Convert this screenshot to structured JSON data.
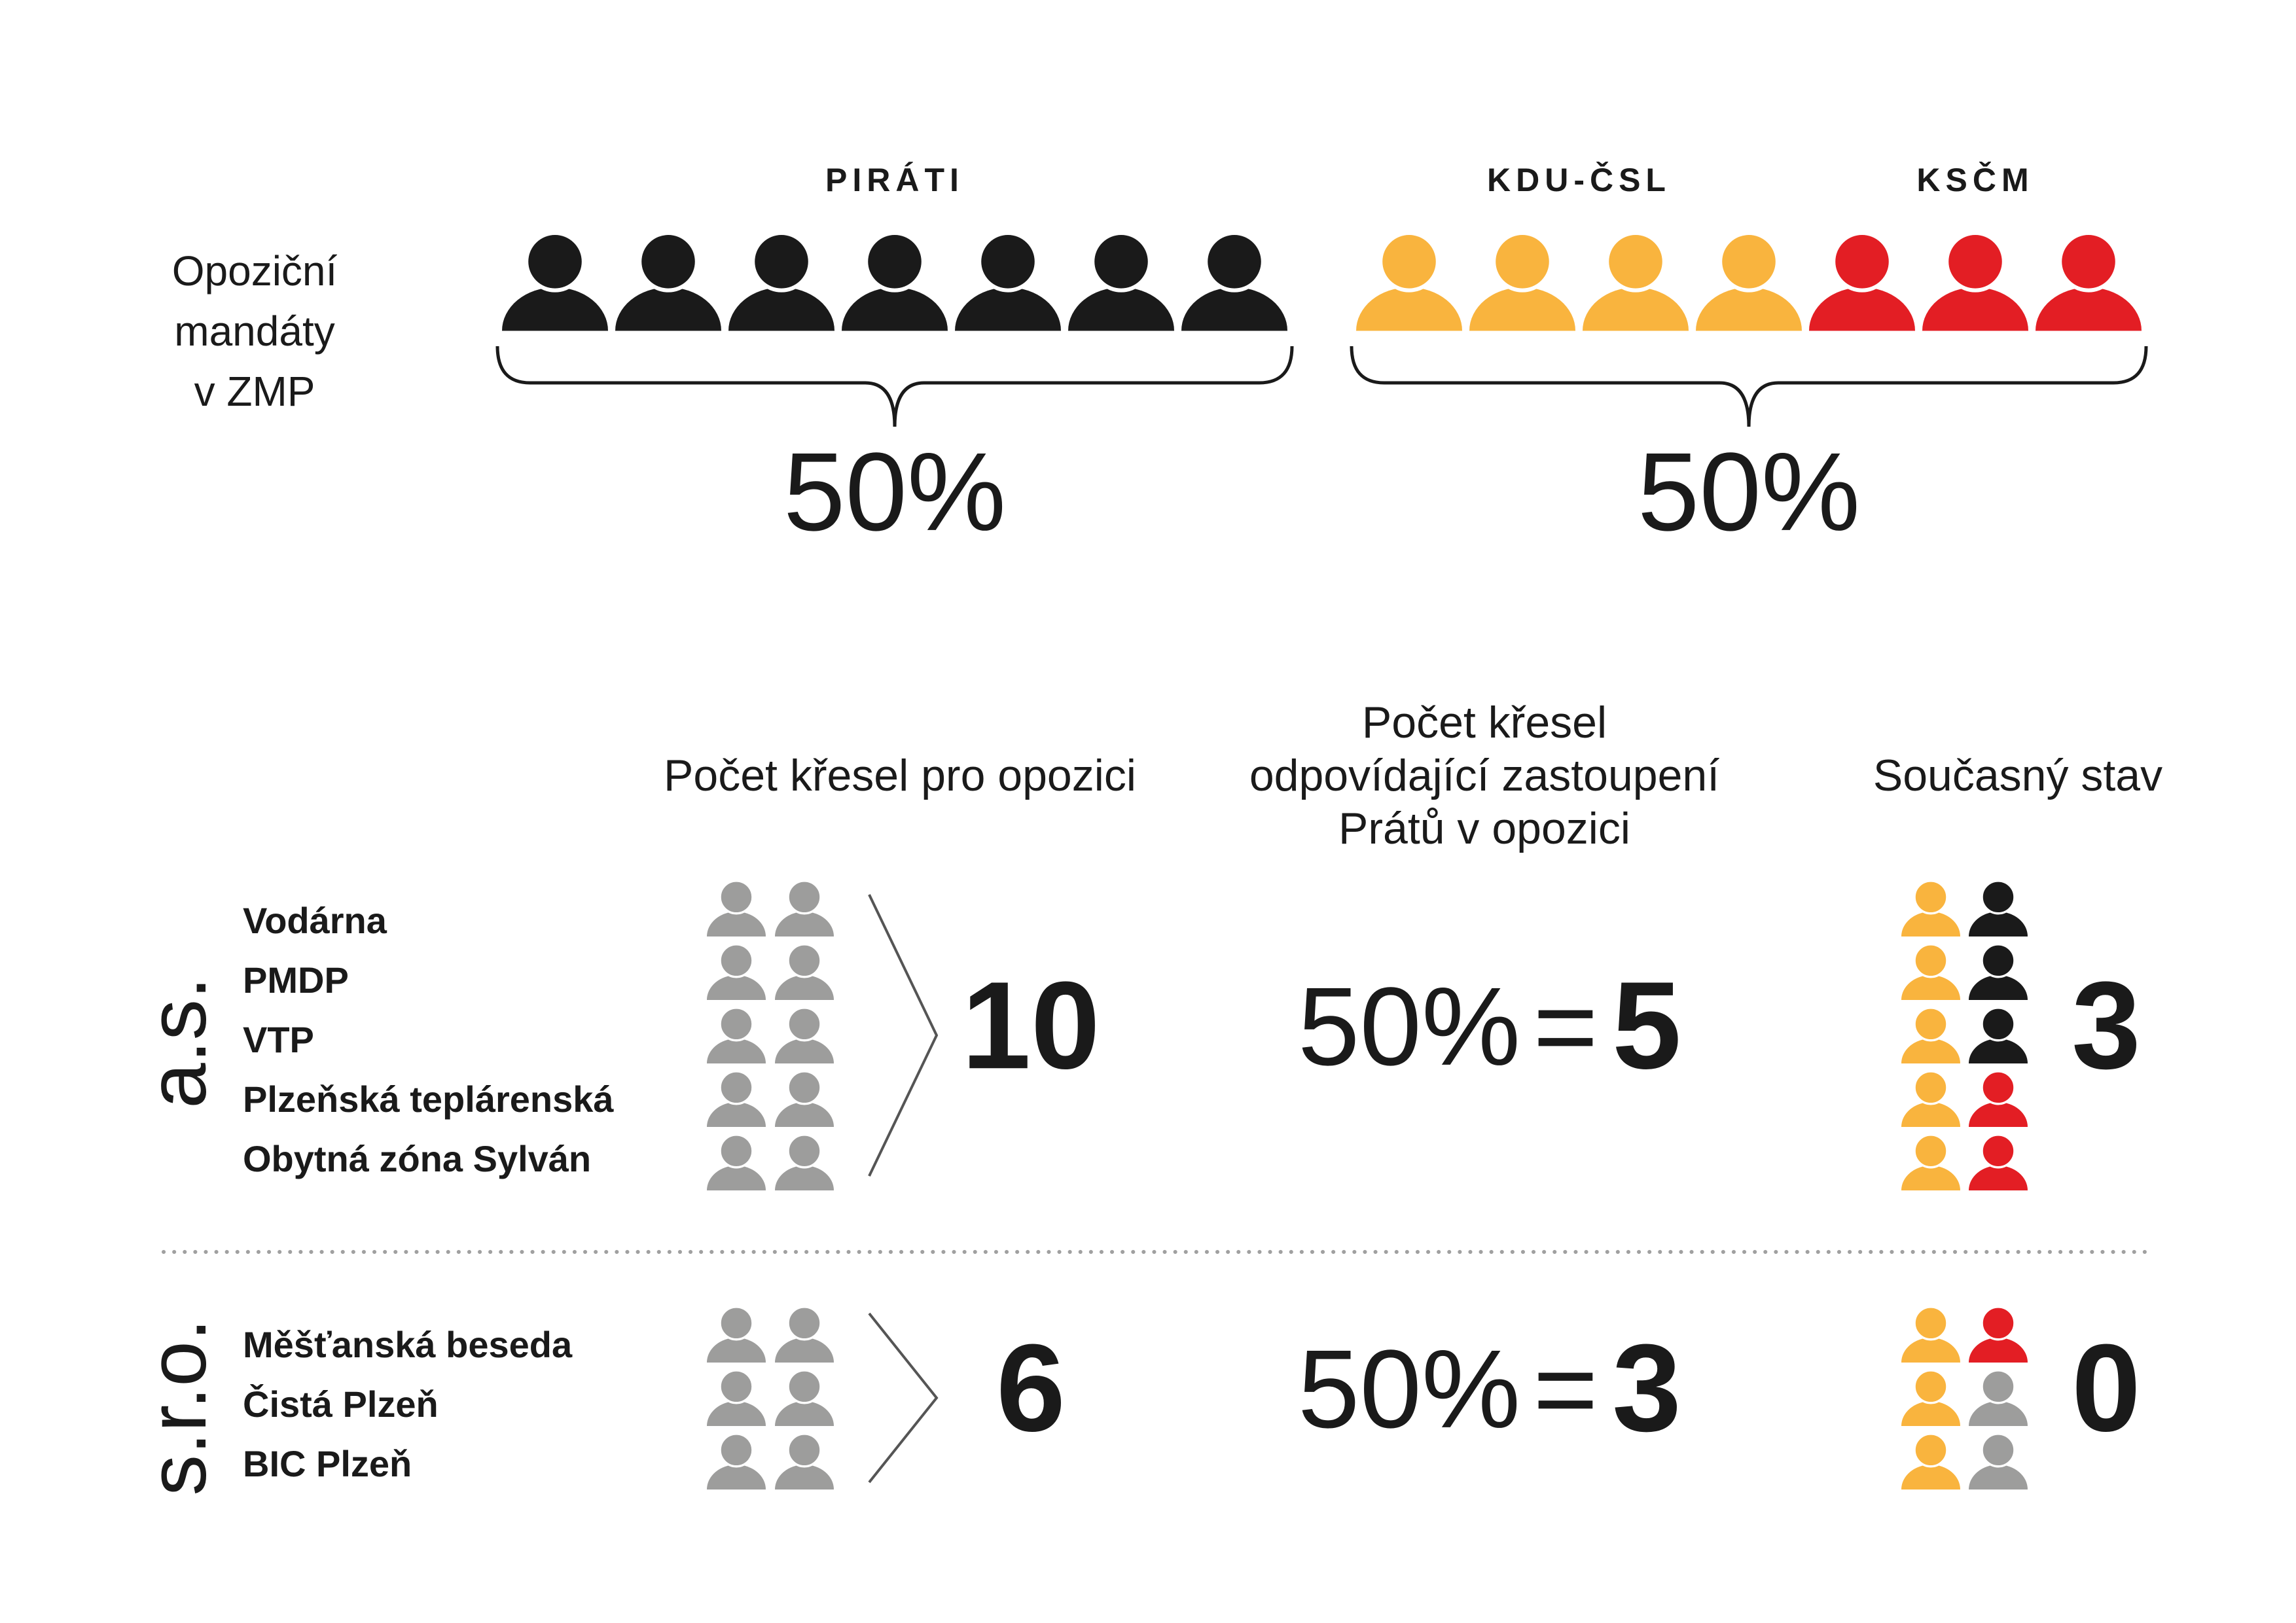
{
  "label": [
    "Opoziční",
    "mandáty",
    "v ZMP"
  ],
  "groups": [
    {
      "share": "50%",
      "parties": [
        {
          "name": "PIRÁTI",
          "color": "#1a1a1a",
          "seats": 7
        }
      ]
    },
    {
      "share": "50%",
      "parties": [
        {
          "name": "KDU-ČSL",
          "color": "#f9b43e",
          "seats": 4
        },
        {
          "name": "KSČM",
          "color": "#e31e24",
          "seats": 3
        }
      ]
    }
  ],
  "headers": [
    [
      "Počet křesel pro opozici"
    ],
    [
      "Počet křesel",
      "odpovídající zastoupení",
      "Prátů v opozici"
    ],
    [
      "Současný stav"
    ]
  ],
  "equals_sign": "=",
  "seat_color": "#9d9d9c",
  "rows": [
    {
      "type": "a.s.",
      "companies": [
        "Vodárna",
        "PMDP",
        "VTP",
        "Plzeňská teplárenská",
        "Obytná zóna Sylván"
      ],
      "opposition_seats": 10,
      "share": "50%",
      "proportional_seats": 5,
      "current_seats": [
        {
          "color": "#f9b43e",
          "count": 5
        },
        {
          "color": "#1a1a1a",
          "count": 3
        },
        {
          "color": "#e31e24",
          "count": 2
        }
      ],
      "current_pirate_seats": 3
    },
    {
      "type": "s.r.o.",
      "companies": [
        "Měšťanská beseda",
        "Čistá Plzeň",
        "BIC Plzeň"
      ],
      "opposition_seats": 6,
      "share": "50%",
      "proportional_seats": 3,
      "current_seats": [
        {
          "color": "#f9b43e",
          "count": 3
        },
        {
          "color": "#e31e24",
          "count": 1
        },
        {
          "color": "#9d9d9c",
          "count": 2
        }
      ],
      "current_pirate_seats": 0
    }
  ]
}
